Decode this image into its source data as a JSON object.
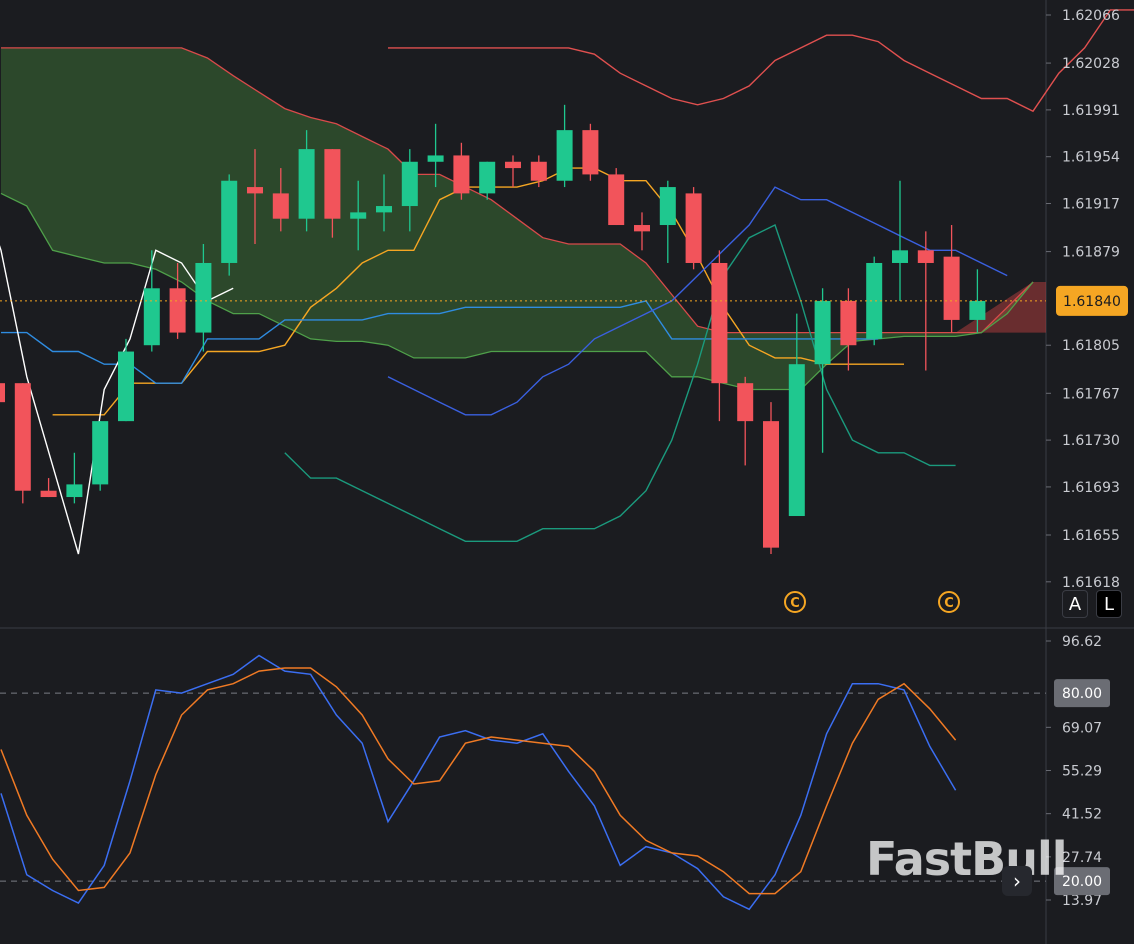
{
  "colors": {
    "background": "#1b1c20",
    "up": "#1fc88f",
    "down": "#f2545b",
    "grid": "#55575e",
    "price_line": "#f5a623",
    "stoch_k": "#3b6ef2",
    "stoch_d": "#f07a24",
    "cloud_bull": "rgba(58,110,52,0.55)",
    "cloud_bear": "rgba(170,60,60,0.55)"
  },
  "price_axis": {
    "labels": [
      "1.62066",
      "1.62028",
      "1.61991",
      "1.61954",
      "1.61917",
      "1.61879",
      "1.61805",
      "1.61767",
      "1.61730",
      "1.61693",
      "1.61655",
      "1.61618"
    ],
    "current_price": "1.61840"
  },
  "scale_buttons": {
    "auto": "A",
    "log": "L"
  },
  "event_markers": [
    "©",
    "©"
  ],
  "oscillator_axis": {
    "labels": [
      "96.62",
      "69.07",
      "55.29",
      "41.52",
      "27.74",
      "13.97"
    ],
    "upper_level": "80.00",
    "lower_level": "20.00"
  },
  "watermark": "FastBull",
  "next_icon": "chevron-right-icon",
  "chart_data": [
    {
      "type": "candlestick",
      "ylim": [
        1.616,
        1.6208
      ],
      "candles": [
        [
          1.61775,
          1.61775,
          1.6176,
          1.6176
        ],
        [
          1.61775,
          1.61775,
          1.6168,
          1.6169
        ],
        [
          1.6169,
          1.617,
          1.61685,
          1.61685
        ],
        [
          1.61685,
          1.6172,
          1.6168,
          1.61695
        ],
        [
          1.61695,
          1.61745,
          1.6169,
          1.61745
        ],
        [
          1.61745,
          1.6181,
          1.61745,
          1.618
        ],
        [
          1.61805,
          1.6188,
          1.618,
          1.6185
        ],
        [
          1.6185,
          1.6187,
          1.6181,
          1.61815
        ],
        [
          1.61815,
          1.61885,
          1.618,
          1.6187
        ],
        [
          1.6187,
          1.6194,
          1.6186,
          1.61935
        ],
        [
          1.6193,
          1.6196,
          1.61885,
          1.61925
        ],
        [
          1.61925,
          1.61945,
          1.61895,
          1.61905
        ],
        [
          1.61905,
          1.61975,
          1.61895,
          1.6196
        ],
        [
          1.6196,
          1.6196,
          1.6189,
          1.61905
        ],
        [
          1.61905,
          1.61935,
          1.6188,
          1.6191
        ],
        [
          1.6191,
          1.6194,
          1.61895,
          1.61915
        ],
        [
          1.61915,
          1.6196,
          1.61895,
          1.6195
        ],
        [
          1.6195,
          1.6198,
          1.6193,
          1.61955
        ],
        [
          1.61955,
          1.61965,
          1.6192,
          1.61925
        ],
        [
          1.61925,
          1.6195,
          1.6192,
          1.6195
        ],
        [
          1.6195,
          1.61955,
          1.6193,
          1.61945
        ],
        [
          1.6195,
          1.61955,
          1.6193,
          1.61935
        ],
        [
          1.61935,
          1.61995,
          1.6193,
          1.61975
        ],
        [
          1.61975,
          1.6198,
          1.61935,
          1.6194
        ],
        [
          1.6194,
          1.61945,
          1.619,
          1.619
        ],
        [
          1.619,
          1.6191,
          1.6188,
          1.61895
        ],
        [
          1.619,
          1.61935,
          1.6187,
          1.6193
        ],
        [
          1.61925,
          1.6193,
          1.61865,
          1.6187
        ],
        [
          1.6187,
          1.6188,
          1.61745,
          1.61775
        ],
        [
          1.61775,
          1.6178,
          1.6171,
          1.61745
        ],
        [
          1.61745,
          1.6176,
          1.6164,
          1.61645
        ],
        [
          1.6167,
          1.6183,
          1.6167,
          1.6179
        ],
        [
          1.6179,
          1.6185,
          1.6172,
          1.6184
        ],
        [
          1.6184,
          1.6185,
          1.61785,
          1.61805
        ],
        [
          1.6181,
          1.61875,
          1.61805,
          1.6187
        ],
        [
          1.6187,
          1.61935,
          1.6184,
          1.6188
        ],
        [
          1.6188,
          1.61895,
          1.61785,
          1.6187
        ],
        [
          1.61875,
          1.619,
          1.61815,
          1.61825
        ],
        [
          1.61825,
          1.61865,
          1.61815,
          1.6184
        ]
      ],
      "series": [
        {
          "kind": "upper_band",
          "color": "#e0504f",
          "values": [
            1.6204,
            1.6204,
            1.6204,
            1.6204,
            1.6204,
            1.6204,
            1.6204,
            1.6204,
            1.62035,
            1.6202,
            1.6201,
            1.62,
            1.61995,
            1.62,
            1.6201,
            1.6203,
            1.6204,
            1.6205,
            1.6205,
            1.62045,
            1.6203,
            1.6202,
            1.6201,
            1.62,
            1.62,
            1.6199,
            1.6202,
            1.6204,
            1.6207,
            1.6207,
            1.6206,
            1.6206,
            1.6206,
            1.6205,
            1.6204,
            1.6203,
            1.6203
          ]
        },
        {
          "kind": "tenkan",
          "color": "#f5a623",
          "values": [
            null,
            null,
            1.6175,
            1.6175,
            1.6175,
            1.61775,
            1.61775,
            1.61775,
            1.618,
            1.618,
            1.618,
            1.61805,
            1.61835,
            1.6185,
            1.6187,
            1.6188,
            1.6188,
            1.6192,
            1.6193,
            1.6193,
            1.6193,
            1.61935,
            1.61945,
            1.61945,
            1.61935,
            1.61935,
            1.6191,
            1.61875,
            1.61835,
            1.61805,
            1.61795,
            1.61795,
            1.6179,
            1.6179,
            1.6179,
            1.6179
          ]
        },
        {
          "kind": "kijun",
          "color": "#2f8ce0",
          "values": [
            1.61815,
            1.61815,
            1.618,
            1.618,
            1.6179,
            1.6179,
            1.61775,
            1.61775,
            1.6181,
            1.6181,
            1.6181,
            1.61825,
            1.61825,
            1.61825,
            1.61825,
            1.6183,
            1.6183,
            1.6183,
            1.61835,
            1.61835,
            1.61835,
            1.61835,
            1.61835,
            1.61835,
            1.61835,
            1.6184,
            1.6181,
            1.6181,
            1.6181,
            1.6181,
            1.6181,
            1.6181,
            1.6181,
            1.6181,
            1.6181
          ]
        },
        {
          "kind": "lower_band",
          "color": "#1b9a7d",
          "values": [
            1.6172,
            1.617,
            1.617,
            1.6169,
            1.6168,
            1.6167,
            1.6166,
            1.6165,
            1.6165,
            1.6165,
            1.6166,
            1.6166,
            1.6166,
            1.6167,
            1.6169,
            1.6173,
            1.6179,
            1.6186,
            1.6189,
            1.619,
            1.6184,
            1.6177,
            1.6173,
            1.6172,
            1.6172,
            1.6171,
            1.6171
          ]
        },
        {
          "kind": "middle_band",
          "color": "#3a60e0",
          "values": [
            1.6178,
            1.6177,
            1.6176,
            1.6175,
            1.6175,
            1.6176,
            1.6178,
            1.6179,
            1.6181,
            1.6182,
            1.6183,
            1.6184,
            1.6186,
            1.6188,
            1.619,
            1.6193,
            1.6192,
            1.6192,
            1.6191,
            1.619,
            1.6189,
            1.6188,
            1.6188,
            1.6187,
            1.6186
          ]
        },
        {
          "kind": "lagging",
          "color": "#ffffff",
          "values": [
            1.6194,
            1.6188,
            1.6178,
            1.6171,
            1.6164,
            1.6177,
            1.6181,
            1.6188,
            1.6187,
            1.6184,
            1.6185
          ]
        }
      ]
    },
    {
      "type": "line",
      "ylim": [
        8,
        100
      ],
      "levels": [
        80,
        20
      ],
      "series": [
        {
          "kind": "k",
          "color": "#3b6ef2",
          "values": [
            48,
            22,
            17,
            13,
            25,
            52,
            81,
            80,
            83,
            86,
            92,
            87,
            86,
            73,
            64,
            39,
            52,
            66,
            68,
            65,
            64,
            67,
            55,
            44,
            25,
            31,
            29,
            24,
            15,
            11,
            22,
            41,
            67,
            83,
            83,
            81,
            63,
            49
          ]
        },
        {
          "kind": "d",
          "color": "#f07a24",
          "values": [
            62,
            41,
            27,
            17,
            18,
            29,
            54,
            73,
            81,
            83,
            87,
            88,
            88,
            82,
            73,
            59,
            51,
            52,
            64,
            66,
            65,
            64,
            63,
            55,
            41,
            33,
            29,
            28,
            23,
            16,
            16,
            23,
            44,
            64,
            78,
            83,
            75,
            65
          ]
        }
      ]
    }
  ]
}
